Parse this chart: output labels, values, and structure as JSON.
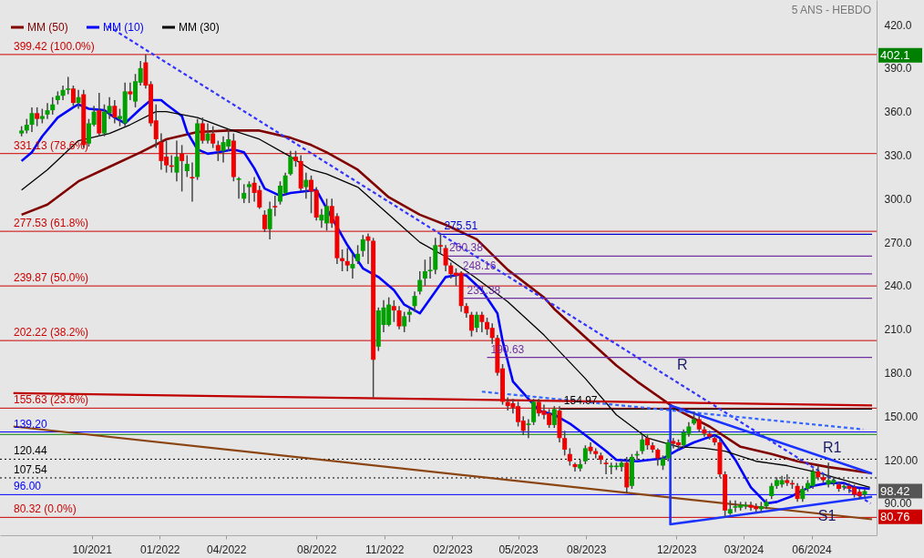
{
  "chart_data": {
    "type": "candlestick",
    "subtitle": "5 ANS - HEBDO",
    "legend": "top left",
    "xlim": [
      "2021-06-05",
      "2024-08-22"
    ],
    "ylim": [
      68,
      437
    ],
    "xticks": [
      {
        "value": "2021-10-01",
        "label": "10/2021"
      },
      {
        "value": "2022-01-01",
        "label": "01/2022"
      },
      {
        "value": "2022-04-01",
        "label": "04/2022"
      },
      {
        "value": "2022-08-01",
        "label": "08/2022"
      },
      {
        "value": "2022-11-01",
        "label": "11/2022"
      },
      {
        "value": "2023-02-01",
        "label": "02/2023"
      },
      {
        "value": "2023-05-01",
        "label": "05/2023"
      },
      {
        "value": "2023-08-01",
        "label": "08/2023"
      },
      {
        "value": "2023-12-01",
        "label": "12/2023"
      },
      {
        "value": "2024-03-01",
        "label": "03/2024"
      },
      {
        "value": "2024-06-01",
        "label": "06/2024"
      }
    ],
    "yticks": [
      {
        "value": 420,
        "label": "420.0"
      },
      {
        "value": 390,
        "label": "390.0"
      },
      {
        "value": 360,
        "label": "360.0"
      },
      {
        "value": 330,
        "label": "330.0"
      },
      {
        "value": 300,
        "label": "300.0"
      },
      {
        "value": 270,
        "label": "270.0"
      },
      {
        "value": 240,
        "label": "240.0"
      },
      {
        "value": 210,
        "label": "210.0"
      },
      {
        "value": 180,
        "label": "180.0"
      },
      {
        "value": 150,
        "label": "150.00"
      },
      {
        "value": 120,
        "label": "120.00"
      },
      {
        "value": 90,
        "label": "90.00"
      }
    ],
    "x": [
      "2021-06-28",
      "2021-07-05",
      "2021-07-12",
      "2021-07-19",
      "2021-07-26",
      "2021-08-02",
      "2021-08-09",
      "2021-08-16",
      "2021-08-23",
      "2021-08-30",
      "2021-09-06",
      "2021-09-13",
      "2021-09-20",
      "2021-09-27",
      "2021-10-04",
      "2021-10-11",
      "2021-10-18",
      "2021-10-25",
      "2021-11-01",
      "2021-11-08",
      "2021-11-15",
      "2021-11-22",
      "2021-11-29",
      "2021-12-06",
      "2021-12-13",
      "2021-12-20",
      "2021-12-27",
      "2022-01-03",
      "2022-01-10",
      "2022-01-17",
      "2022-01-24",
      "2022-01-31",
      "2022-02-07",
      "2022-02-14",
      "2022-02-21",
      "2022-02-28",
      "2022-03-07",
      "2022-03-14",
      "2022-03-21",
      "2022-03-28",
      "2022-04-04",
      "2022-04-11",
      "2022-04-18",
      "2022-04-25",
      "2022-05-02",
      "2022-05-09",
      "2022-05-16",
      "2022-05-23",
      "2022-05-30",
      "2022-06-06",
      "2022-06-13",
      "2022-06-20",
      "2022-06-27",
      "2022-07-04",
      "2022-07-11",
      "2022-07-18",
      "2022-07-25",
      "2022-08-01",
      "2022-08-08",
      "2022-08-15",
      "2022-08-22",
      "2022-08-29",
      "2022-09-05",
      "2022-09-12",
      "2022-09-19",
      "2022-09-26",
      "2022-10-03",
      "2022-10-10",
      "2022-10-17",
      "2022-10-24",
      "2022-10-31",
      "2022-11-07",
      "2022-11-14",
      "2022-11-21",
      "2022-11-28",
      "2022-12-05",
      "2022-12-12",
      "2022-12-19",
      "2022-12-26",
      "2023-01-02",
      "2023-01-09",
      "2023-01-16",
      "2023-01-23",
      "2023-01-30",
      "2023-02-06",
      "2023-02-13",
      "2023-02-20",
      "2023-02-27",
      "2023-03-06",
      "2023-03-13",
      "2023-03-20",
      "2023-03-27",
      "2023-04-03",
      "2023-04-10",
      "2023-04-17",
      "2023-04-24",
      "2023-05-01",
      "2023-05-08",
      "2023-05-15",
      "2023-05-22",
      "2023-05-29",
      "2023-06-05",
      "2023-06-12",
      "2023-06-19",
      "2023-06-26",
      "2023-07-03",
      "2023-07-10",
      "2023-07-17",
      "2023-07-24",
      "2023-07-31",
      "2023-08-07",
      "2023-08-14",
      "2023-08-21",
      "2023-08-28",
      "2023-09-04",
      "2023-09-11",
      "2023-09-18",
      "2023-09-25",
      "2023-10-02",
      "2023-10-09",
      "2023-10-16",
      "2023-10-23",
      "2023-10-30",
      "2023-11-06",
      "2023-11-13",
      "2023-11-20",
      "2023-11-27",
      "2023-12-04",
      "2023-12-11",
      "2023-12-18",
      "2023-12-25",
      "2024-01-01",
      "2024-01-08",
      "2024-01-15",
      "2024-01-22",
      "2024-01-29",
      "2024-02-05",
      "2024-02-12",
      "2024-02-19",
      "2024-02-26",
      "2024-03-04",
      "2024-03-11",
      "2024-03-18",
      "2024-03-25",
      "2024-04-01",
      "2024-04-08",
      "2024-04-15",
      "2024-04-22",
      "2024-04-29",
      "2024-05-06",
      "2024-05-13",
      "2024-05-20",
      "2024-05-27",
      "2024-06-03",
      "2024-06-10",
      "2024-06-17",
      "2024-06-24",
      "2024-07-01",
      "2024-07-08",
      "2024-07-15",
      "2024-07-22",
      "2024-07-29",
      "2024-08-05",
      "2024-08-12"
    ],
    "ohlc": [
      [
        345,
        350,
        343,
        347
      ],
      [
        347,
        355,
        345,
        351
      ],
      [
        351,
        363,
        346,
        359
      ],
      [
        359,
        363,
        350,
        355
      ],
      [
        355,
        362,
        352,
        357
      ],
      [
        358,
        366,
        355,
        361
      ],
      [
        361,
        370,
        358,
        365
      ],
      [
        368,
        374,
        365,
        371
      ],
      [
        371,
        378,
        368,
        375
      ],
      [
        375,
        384,
        372,
        376
      ],
      [
        376,
        378,
        364,
        366
      ],
      [
        366,
        375,
        362,
        370
      ],
      [
        372,
        375,
        335,
        337
      ],
      [
        338,
        355,
        336,
        352
      ],
      [
        351,
        364,
        350,
        360
      ],
      [
        361,
        373,
        343,
        345
      ],
      [
        345,
        365,
        343,
        360
      ],
      [
        359,
        370,
        355,
        364
      ],
      [
        364,
        368,
        352,
        356
      ],
      [
        355,
        362,
        350,
        357
      ],
      [
        352,
        380,
        350,
        374
      ],
      [
        374,
        380,
        368,
        372
      ],
      [
        367,
        386,
        363,
        381
      ],
      [
        380,
        395,
        378,
        390
      ],
      [
        394,
        399.42,
        376,
        378
      ],
      [
        379,
        381,
        350,
        352
      ],
      [
        354,
        365,
        335,
        341
      ],
      [
        339,
        345,
        320,
        326
      ],
      [
        329,
        340,
        318,
        323
      ],
      [
        323,
        330,
        318,
        322
      ],
      [
        318,
        340,
        312,
        329
      ],
      [
        331,
        337,
        305,
        326
      ],
      [
        319,
        330,
        315,
        324
      ],
      [
        315,
        325,
        298,
        314
      ],
      [
        315,
        355,
        313,
        352
      ],
      [
        352,
        356,
        338,
        340
      ],
      [
        340,
        352,
        338,
        345
      ],
      [
        345,
        350,
        335,
        338
      ],
      [
        337,
        340,
        326,
        333
      ],
      [
        333,
        343,
        325,
        339
      ],
      [
        336,
        348,
        333,
        341
      ],
      [
        340,
        345,
        312,
        315
      ],
      [
        313,
        315,
        300,
        314
      ],
      [
        300,
        310,
        297,
        304
      ],
      [
        308,
        312,
        297,
        310
      ],
      [
        311,
        315,
        298,
        304
      ],
      [
        306,
        309,
        293,
        294
      ],
      [
        289,
        292,
        277,
        279
      ],
      [
        279,
        298,
        272,
        293
      ],
      [
        295,
        302,
        288,
        294
      ],
      [
        298,
        312,
        296,
        309
      ],
      [
        304,
        318,
        302,
        316
      ],
      [
        317,
        333,
        316,
        329
      ],
      [
        329,
        333,
        322,
        326
      ],
      [
        326,
        330,
        305,
        307
      ],
      [
        308,
        318,
        300,
        313
      ],
      [
        313,
        316,
        290,
        305
      ],
      [
        306,
        308,
        285,
        287
      ],
      [
        285,
        293,
        280,
        289
      ],
      [
        283,
        300,
        278,
        295
      ],
      [
        295,
        300,
        280,
        283
      ],
      [
        288,
        290,
        255,
        259
      ],
      [
        259,
        265,
        250,
        257
      ],
      [
        257,
        266,
        250,
        254
      ],
      [
        252,
        262,
        245,
        255
      ],
      [
        257,
        268,
        255,
        262
      ],
      [
        264,
        275,
        260,
        272
      ],
      [
        274,
        276,
        255,
        271
      ],
      [
        271,
        273,
        163,
        189
      ],
      [
        198,
        225,
        195,
        223
      ],
      [
        213,
        230,
        208,
        225
      ],
      [
        213,
        232,
        212,
        227
      ],
      [
        226,
        230,
        215,
        223
      ],
      [
        223,
        226,
        210,
        212
      ],
      [
        212,
        222,
        208,
        219
      ],
      [
        220,
        225,
        215,
        222
      ],
      [
        226,
        236,
        222,
        233
      ],
      [
        236,
        250,
        234,
        244
      ],
      [
        245,
        258,
        240,
        250
      ],
      [
        250,
        260,
        245,
        251
      ],
      [
        251,
        273,
        248,
        268
      ],
      [
        268,
        275.51,
        262,
        267
      ],
      [
        266,
        268,
        250,
        254
      ],
      [
        254,
        256,
        245,
        248
      ],
      [
        249,
        252,
        240,
        247
      ],
      [
        249,
        250,
        222,
        226
      ],
      [
        226,
        228,
        218,
        221
      ],
      [
        220,
        222,
        205,
        209
      ],
      [
        211,
        222,
        208,
        220
      ],
      [
        220,
        222,
        208,
        215
      ],
      [
        215,
        218,
        206,
        210
      ],
      [
        211,
        214,
        200,
        204
      ],
      [
        204,
        206,
        178,
        180
      ],
      [
        183,
        186,
        158,
        160
      ],
      [
        160,
        163,
        154,
        157
      ],
      [
        159,
        162,
        152,
        156
      ],
      [
        157,
        160,
        143,
        146
      ],
      [
        147,
        150,
        137,
        140
      ],
      [
        144,
        148,
        135,
        145
      ],
      [
        146,
        162,
        144,
        160
      ],
      [
        160,
        162,
        150,
        152
      ],
      [
        154,
        158,
        148,
        151
      ],
      [
        152,
        155,
        142,
        144
      ],
      [
        144,
        157,
        142,
        155
      ],
      [
        154,
        157,
        132,
        135
      ],
      [
        135,
        140,
        123,
        127
      ],
      [
        124,
        128,
        116,
        119
      ],
      [
        117,
        118,
        112,
        115
      ],
      [
        114,
        120,
        112,
        117
      ],
      [
        119,
        130,
        117,
        128
      ],
      [
        129,
        132,
        124,
        126
      ],
      [
        126,
        128,
        121,
        124
      ],
      [
        123,
        125,
        117,
        120
      ],
      [
        118,
        120,
        110,
        117
      ],
      [
        115,
        118,
        110,
        116
      ],
      [
        115,
        118,
        113,
        116
      ],
      [
        115,
        120,
        112,
        118
      ],
      [
        118,
        122,
        97,
        101
      ],
      [
        102,
        124,
        100,
        122
      ],
      [
        123,
        126,
        120,
        124
      ],
      [
        126,
        137,
        124,
        134
      ],
      [
        135,
        137,
        127,
        130
      ],
      [
        130,
        132,
        125,
        127
      ],
      [
        127,
        128,
        116,
        121
      ],
      [
        116,
        123,
        113,
        121
      ],
      [
        121,
        134,
        119,
        132
      ],
      [
        133,
        135,
        128,
        131
      ],
      [
        132,
        134,
        127,
        130
      ],
      [
        130,
        141,
        128,
        139
      ],
      [
        138,
        146,
        136,
        143
      ],
      [
        145,
        153,
        144,
        148
      ],
      [
        148,
        150,
        139,
        141
      ],
      [
        141,
        143,
        136,
        138
      ],
      [
        138,
        140,
        134,
        136
      ],
      [
        135,
        137,
        130,
        132
      ],
      [
        132,
        134,
        108,
        110
      ],
      [
        110,
        112,
        80.32,
        85
      ],
      [
        83,
        92,
        82,
        86
      ],
      [
        87,
        92,
        84,
        88
      ],
      [
        87,
        91,
        85,
        89
      ],
      [
        88,
        91,
        86,
        89
      ],
      [
        89,
        91,
        85,
        87
      ],
      [
        88,
        90,
        84,
        86
      ],
      [
        86,
        91,
        84,
        88
      ],
      [
        88,
        93,
        86,
        91
      ],
      [
        95,
        104,
        93,
        102
      ],
      [
        102,
        108,
        100,
        106
      ],
      [
        103,
        109,
        101,
        106
      ],
      [
        106,
        110,
        102,
        104
      ],
      [
        104,
        106,
        100,
        103
      ],
      [
        102,
        104,
        91,
        93
      ],
      [
        93,
        102,
        91,
        100
      ],
      [
        100,
        106,
        98,
        104
      ],
      [
        102,
        114,
        100,
        112
      ],
      [
        112,
        116,
        106,
        108
      ],
      [
        108,
        110,
        104,
        106
      ],
      [
        103,
        118,
        101,
        106
      ],
      [
        104,
        108,
        102,
        106
      ],
      [
        103,
        105,
        98,
        100
      ],
      [
        101,
        104,
        99,
        102
      ],
      [
        102,
        104,
        97,
        100
      ],
      [
        101,
        103,
        94,
        96
      ],
      [
        98,
        100,
        93,
        95
      ],
      [
        96,
        100,
        94,
        98.42
      ]
    ],
    "series": [
      {
        "name": "MM (50)",
        "type": "line",
        "color": "#800000",
        "x": [
          "2021-06-28",
          "2021-08-02",
          "2021-09-13",
          "2021-10-25",
          "2021-12-06",
          "2022-01-10",
          "2022-02-21",
          "2022-04-04",
          "2022-05-16",
          "2022-06-27",
          "2022-07-25",
          "2022-08-15",
          "2022-09-26",
          "2022-11-07",
          "2022-12-19",
          "2023-01-23",
          "2023-03-06",
          "2023-04-17",
          "2023-06-05",
          "2023-06-19",
          "2023-09-11",
          "2023-10-09",
          "2023-12-04",
          "2024-01-15",
          "2024-02-26",
          "2024-04-08",
          "2024-05-13",
          "2024-06-24",
          "2024-08-19"
        ],
        "values": [
          289,
          296,
          312,
          322,
          332,
          341,
          346,
          347,
          347,
          342,
          337,
          332,
          320,
          301,
          289,
          282,
          272,
          251,
          232,
          224,
          185,
          174,
          154,
          143,
          129,
          124,
          119,
          115,
          111
        ]
      },
      {
        "name": "MM (10)",
        "type": "line",
        "color": "#0000ff",
        "x": [
          "2021-06-28",
          "2021-07-12",
          "2021-07-26",
          "2021-08-16",
          "2021-09-06",
          "2021-09-13",
          "2021-09-27",
          "2021-10-18",
          "2021-11-01",
          "2021-11-15",
          "2021-12-06",
          "2021-12-20",
          "2022-01-03",
          "2022-01-10",
          "2022-01-31",
          "2022-02-07",
          "2022-02-21",
          "2022-03-07",
          "2022-03-21",
          "2022-04-11",
          "2022-04-25",
          "2022-05-09",
          "2022-05-23",
          "2022-06-13",
          "2022-06-27",
          "2022-08-01",
          "2022-08-15",
          "2022-09-12",
          "2022-10-03",
          "2022-10-24",
          "2022-11-14",
          "2022-11-28",
          "2022-12-19",
          "2023-01-02",
          "2023-01-23",
          "2023-02-13",
          "2023-02-20",
          "2023-03-13",
          "2023-04-03",
          "2023-04-10",
          "2023-04-24",
          "2023-05-15",
          "2023-05-29",
          "2023-06-19",
          "2023-07-10",
          "2023-07-31",
          "2023-08-28",
          "2023-09-11",
          "2023-10-09",
          "2023-11-13",
          "2023-12-04",
          "2023-12-25",
          "2024-01-22",
          "2024-01-29",
          "2024-02-19",
          "2024-03-11",
          "2024-04-01",
          "2024-04-15",
          "2024-05-06",
          "2024-05-20",
          "2024-06-03",
          "2024-06-24",
          "2024-07-15",
          "2024-07-29",
          "2024-08-19"
        ],
        "values": [
          326,
          332,
          343,
          356,
          363,
          365,
          362,
          361,
          356,
          352,
          362,
          368,
          368,
          365,
          357,
          346,
          334,
          331,
          332,
          334,
          332,
          321,
          307,
          302,
          304,
          306,
          293,
          268,
          252,
          246,
          237,
          227,
          221,
          231,
          246,
          248,
          247,
          237,
          221,
          202,
          174,
          162,
          154,
          151,
          145,
          137,
          126,
          120,
          119,
          121,
          127,
          132,
          137,
          135,
          120,
          101,
          90,
          91,
          95,
          99,
          102,
          104,
          104,
          101,
          100
        ]
      },
      {
        "name": "MM (30)",
        "type": "line",
        "color": "#000000",
        "x": [
          "2021-06-28",
          "2021-08-02",
          "2021-09-13",
          "2021-10-25",
          "2021-11-22",
          "2021-12-27",
          "2022-01-10",
          "2022-02-21",
          "2022-04-04",
          "2022-05-16",
          "2022-06-27",
          "2022-07-25",
          "2022-08-15",
          "2022-09-26",
          "2022-11-07",
          "2022-12-19",
          "2023-01-23",
          "2023-03-06",
          "2023-04-17",
          "2023-06-05",
          "2023-07-31",
          "2023-09-11",
          "2023-10-23",
          "2023-12-04",
          "2024-01-08",
          "2024-02-05",
          "2024-03-18",
          "2024-04-29",
          "2024-06-03",
          "2024-07-15",
          "2024-08-19"
        ],
        "values": [
          306,
          320,
          340,
          345,
          351,
          360,
          360,
          356,
          348,
          341,
          329,
          320,
          317,
          308,
          289,
          270,
          260,
          245,
          229,
          206,
          176,
          151,
          135,
          129,
          128,
          126,
          119,
          116,
          112,
          106,
          101
        ]
      },
      {
        "name": "275.51",
        "type": "line",
        "color": "#0000cc",
        "x": [
          "2023-01-16",
          "2024-08-22"
        ],
        "values": [
          275.51,
          275.51
        ]
      },
      {
        "name": "260.38",
        "type": "line",
        "color": "#7030a0",
        "x": [
          "2023-01-23",
          "2024-08-22"
        ],
        "values": [
          260.38,
          260.38
        ]
      },
      {
        "name": "248.16",
        "type": "line",
        "color": "#7030a0",
        "x": [
          "2023-02-10",
          "2024-08-22"
        ],
        "values": [
          248.16,
          248.16
        ]
      },
      {
        "name": "231.38",
        "type": "line",
        "color": "#7030a0",
        "x": [
          "2023-02-16",
          "2024-08-22"
        ],
        "values": [
          231.38,
          231.38
        ]
      },
      {
        "name": "190.63",
        "type": "line",
        "color": "#7030a0",
        "x": [
          "2023-03-20",
          "2024-08-22"
        ],
        "values": [
          190.63,
          190.63
        ]
      },
      {
        "name": "154.97",
        "type": "line",
        "color": "#000000",
        "x": [
          "2023-06-27",
          "2024-08-22"
        ],
        "values": [
          154.97,
          154.97
        ]
      },
      {
        "type": "line",
        "color": "#3333ff",
        "line_style": "dashed",
        "x": [
          "2021-10-23",
          "2024-08-20"
        ],
        "values": [
          419,
          90
        ]
      },
      {
        "type": "line",
        "color": "#3366ff",
        "line_style": "dashed",
        "x": [
          "2023-03-13",
          "2024-08-10"
        ],
        "values": [
          167,
          141
        ]
      },
      {
        "type": "line",
        "color": "#c00000",
        "x": [
          "2021-06-17",
          "2024-08-22"
        ],
        "values": [
          166,
          157.5
        ]
      },
      {
        "type": "line",
        "color": "#8b4513",
        "x": [
          "2021-06-17",
          "2024-08-22"
        ],
        "values": [
          143,
          79
        ]
      },
      {
        "type": "line",
        "color": "#1a33ff",
        "x": [
          "2024-08-22",
          "2023-11-23",
          "2023-11-23",
          "2024-08-22"
        ],
        "values": [
          110.5,
          157.5,
          75.5,
          94.5
        ]
      }
    ],
    "ref_lines": [
      {
        "axis": "y",
        "value": 399.42,
        "label": "399.42  (100.0%)",
        "color": "#cc0000"
      },
      {
        "axis": "y",
        "value": 331.13,
        "label": "331.13  (78.6%)",
        "color": "#cc0000"
      },
      {
        "axis": "y",
        "value": 277.53,
        "label": "277.53  (61.8%)",
        "color": "#cc0000"
      },
      {
        "axis": "y",
        "value": 239.87,
        "label": "239.87  (50.0%)",
        "color": "#cc0000"
      },
      {
        "axis": "y",
        "value": 202.22,
        "label": "202.22  (38.2%)",
        "color": "#cc0000"
      },
      {
        "axis": "y",
        "value": 155.63,
        "label": "155.63  (23.6%)",
        "color": "#cc0000"
      },
      {
        "axis": "y",
        "value": 139.2,
        "label": "139.20",
        "color": "#0000ff"
      },
      {
        "axis": "y",
        "value": 137.5,
        "color": "#008000"
      },
      {
        "axis": "y",
        "value": 120.44,
        "label": "120.44",
        "color": "#000000",
        "line_style": "dotted"
      },
      {
        "axis": "y",
        "value": 107.54,
        "label": "107.54",
        "color": "#000000",
        "line_style": "dotted"
      },
      {
        "axis": "y",
        "value": 96.0,
        "label": "96.00",
        "color": "#0000ff"
      },
      {
        "axis": "y",
        "value": 80.32,
        "label": "80.32  (0.0%)",
        "color": "#cc0000"
      }
    ],
    "annotations": [
      {
        "text": "R",
        "x": "2023-11-22",
        "y": 176.5
      },
      {
        "text": "R1",
        "x": "2024-06-29",
        "y": 120
      },
      {
        "text": "S1",
        "x": "2024-06-22",
        "y": 90
      },
      {
        "text": "402.1",
        "x": "2024-08-22",
        "y": 398.8
      },
      {
        "text": "98.42",
        "x": "2024-08-22",
        "y": 98.42
      },
      {
        "text": "80.76",
        "x": "2024-08-22",
        "y": 80.76
      }
    ]
  }
}
